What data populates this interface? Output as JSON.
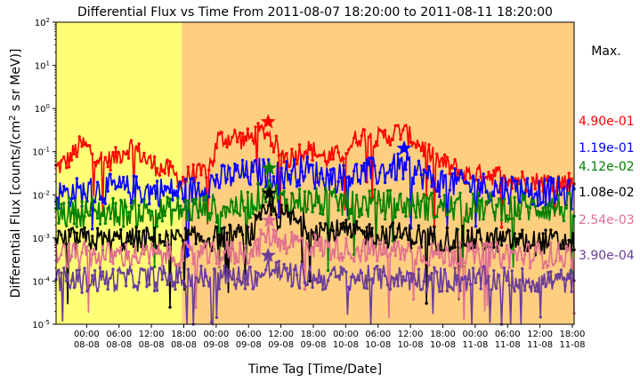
{
  "chart_data": {
    "type": "line",
    "title": "Differential Flux vs Time From 2011-08-07 18:20:00 to 2011-08-11 18:20:00",
    "xlabel": "Time Tag [Time/Date]",
    "ylabel": "Differential Flux [counts/(cm² s sr MeV)]",
    "ylabel_parts": {
      "main": "Differential Flux [counts/(cm",
      "sup": "2",
      "rest": " s sr MeV)]"
    },
    "yscale": "log",
    "ylim": [
      1e-05,
      100
    ],
    "y_ticks": [
      {
        "base": "10",
        "exp": "-5"
      },
      {
        "base": "10",
        "exp": "-4"
      },
      {
        "base": "10",
        "exp": "-3"
      },
      {
        "base": "10",
        "exp": "-2"
      },
      {
        "base": "10",
        "exp": "-1"
      },
      {
        "base": "10",
        "exp": "0"
      },
      {
        "base": "10",
        "exp": "1"
      },
      {
        "base": "10",
        "exp": "2"
      }
    ],
    "x_range_hours": [
      0,
      96
    ],
    "x_ticks": [
      {
        "time": "00:00",
        "date": "08-08"
      },
      {
        "time": "06:00",
        "date": "08-08"
      },
      {
        "time": "12:00",
        "date": "08-08"
      },
      {
        "time": "18:00",
        "date": "08-08"
      },
      {
        "time": "00:00",
        "date": "09-08"
      },
      {
        "time": "06:00",
        "date": "09-08"
      },
      {
        "time": "12:00",
        "date": "09-08"
      },
      {
        "time": "18:00",
        "date": "09-08"
      },
      {
        "time": "00:00",
        "date": "10-08"
      },
      {
        "time": "06:00",
        "date": "10-08"
      },
      {
        "time": "12:00",
        "date": "10-08"
      },
      {
        "time": "18:00",
        "date": "10-08"
      },
      {
        "time": "00:00",
        "date": "11-08"
      },
      {
        "time": "06:00",
        "date": "11-08"
      },
      {
        "time": "12:00",
        "date": "11-08"
      },
      {
        "time": "18:00",
        "date": "11-08"
      }
    ],
    "background_regions": [
      {
        "from_hours": 0,
        "to_hours": 23.3,
        "color": "#ffff77"
      },
      {
        "from_hours": 23.3,
        "to_hours": 96,
        "color": "#ffcf80"
      }
    ],
    "legend_title": "Max.",
    "series": [
      {
        "max_label": "4.90e-01",
        "color": "#ff0000",
        "max_time_hours": 39.3,
        "max_value": 0.49,
        "anchors": [
          [
            0,
            0.04
          ],
          [
            2,
            0.06
          ],
          [
            4,
            0.12
          ],
          [
            5,
            0.15
          ],
          [
            7,
            0.09
          ],
          [
            9,
            0.06
          ],
          [
            11,
            0.07
          ],
          [
            13,
            0.12
          ],
          [
            14,
            0.13
          ],
          [
            16,
            0.08
          ],
          [
            18,
            0.05
          ],
          [
            20,
            0.04
          ],
          [
            22,
            0.03
          ],
          [
            23,
            0.02
          ],
          [
            25,
            0.03
          ],
          [
            27,
            0.03
          ],
          [
            29,
            0.06
          ],
          [
            30,
            0.2
          ],
          [
            33,
            0.22
          ],
          [
            35,
            0.18
          ],
          [
            37,
            0.25
          ],
          [
            39,
            0.3
          ],
          [
            41,
            0.12
          ],
          [
            43,
            0.07
          ],
          [
            44,
            0.08
          ],
          [
            46,
            0.12
          ],
          [
            48,
            0.1
          ],
          [
            50,
            0.07
          ],
          [
            52,
            0.08
          ],
          [
            54,
            0.12
          ],
          [
            56,
            0.22
          ],
          [
            58,
            0.26
          ],
          [
            60,
            0.2
          ],
          [
            62,
            0.25
          ],
          [
            64,
            0.3
          ],
          [
            66,
            0.2
          ],
          [
            68,
            0.13
          ],
          [
            70,
            0.07
          ],
          [
            72,
            0.05
          ],
          [
            74,
            0.04
          ],
          [
            76,
            0.03
          ],
          [
            80,
            0.03
          ],
          [
            84,
            0.025
          ],
          [
            88,
            0.02
          ],
          [
            92,
            0.02
          ],
          [
            96,
            0.02
          ]
        ],
        "noise": 0.25
      },
      {
        "max_label": "1.19e-01",
        "color": "#0000ff",
        "max_time_hours": 64.5,
        "max_value": 0.119,
        "anchors": [
          [
            0,
            0.01
          ],
          [
            10,
            0.014
          ],
          [
            20,
            0.012
          ],
          [
            25,
            0.012
          ],
          [
            30,
            0.022
          ],
          [
            34,
            0.03
          ],
          [
            36,
            0.03
          ],
          [
            38,
            0.035
          ],
          [
            40,
            0.03
          ],
          [
            43,
            0.03
          ],
          [
            46,
            0.04
          ],
          [
            48,
            0.03
          ],
          [
            52,
            0.025
          ],
          [
            56,
            0.03
          ],
          [
            60,
            0.035
          ],
          [
            64,
            0.045
          ],
          [
            66,
            0.04
          ],
          [
            70,
            0.02
          ],
          [
            75,
            0.018
          ],
          [
            80,
            0.015
          ],
          [
            85,
            0.014
          ],
          [
            90,
            0.012
          ],
          [
            96,
            0.01
          ]
        ],
        "noise": 0.35
      },
      {
        "max_label": "4.12e-02",
        "color": "#008000",
        "max_time_hours": 39.5,
        "max_value": 0.0412,
        "anchors": [
          [
            0,
            0.004
          ],
          [
            10,
            0.004
          ],
          [
            20,
            0.004
          ],
          [
            30,
            0.005
          ],
          [
            36,
            0.006
          ],
          [
            39,
            0.012
          ],
          [
            42,
            0.007
          ],
          [
            48,
            0.007
          ],
          [
            56,
            0.006
          ],
          [
            64,
            0.006
          ],
          [
            72,
            0.005
          ],
          [
            80,
            0.005
          ],
          [
            88,
            0.005
          ],
          [
            96,
            0.005
          ]
        ],
        "noise": 0.35
      },
      {
        "max_label": "1.08e-02",
        "color": "#000000",
        "max_time_hours": 39.5,
        "max_value": 0.0108,
        "anchors": [
          [
            0,
            0.0009
          ],
          [
            20,
            0.0009
          ],
          [
            30,
            0.001
          ],
          [
            36,
            0.0012
          ],
          [
            38,
            0.0025
          ],
          [
            40,
            0.006
          ],
          [
            41,
            0.003
          ],
          [
            43,
            0.003
          ],
          [
            46,
            0.002
          ],
          [
            50,
            0.0015
          ],
          [
            56,
            0.0012
          ],
          [
            64,
            0.0012
          ],
          [
            70,
            0.001
          ],
          [
            80,
            0.0009
          ],
          [
            88,
            0.0008
          ],
          [
            96,
            0.0008
          ]
        ],
        "noise": 0.3
      },
      {
        "max_label": "2.54e-03",
        "color": "#e07090",
        "max_time_hours": 39.5,
        "max_value": 0.00254,
        "anchors": [
          [
            0,
            0.0004
          ],
          [
            20,
            0.0004
          ],
          [
            30,
            0.0004
          ],
          [
            37,
            0.0005
          ],
          [
            39,
            0.0013
          ],
          [
            41,
            0.0009
          ],
          [
            44,
            0.0008
          ],
          [
            50,
            0.0006
          ],
          [
            56,
            0.0005
          ],
          [
            64,
            0.0005
          ],
          [
            72,
            0.0004
          ],
          [
            80,
            0.0004
          ],
          [
            88,
            0.0004
          ],
          [
            96,
            0.0004
          ]
        ],
        "noise": 0.3
      },
      {
        "max_label": "3.90e-04",
        "color": "#6a3d9a",
        "max_time_hours": 39.3,
        "max_value": 0.00039,
        "anchors": [
          [
            0,
            0.0001
          ],
          [
            20,
            0.00012
          ],
          [
            30,
            0.00012
          ],
          [
            38,
            0.00013
          ],
          [
            40,
            0.0002
          ],
          [
            42,
            0.00014
          ],
          [
            50,
            0.00012
          ],
          [
            60,
            0.00012
          ],
          [
            70,
            0.00011
          ],
          [
            80,
            0.00011
          ],
          [
            90,
            0.0001
          ],
          [
            96,
            0.0001
          ]
        ],
        "noise": 0.3
      }
    ]
  }
}
